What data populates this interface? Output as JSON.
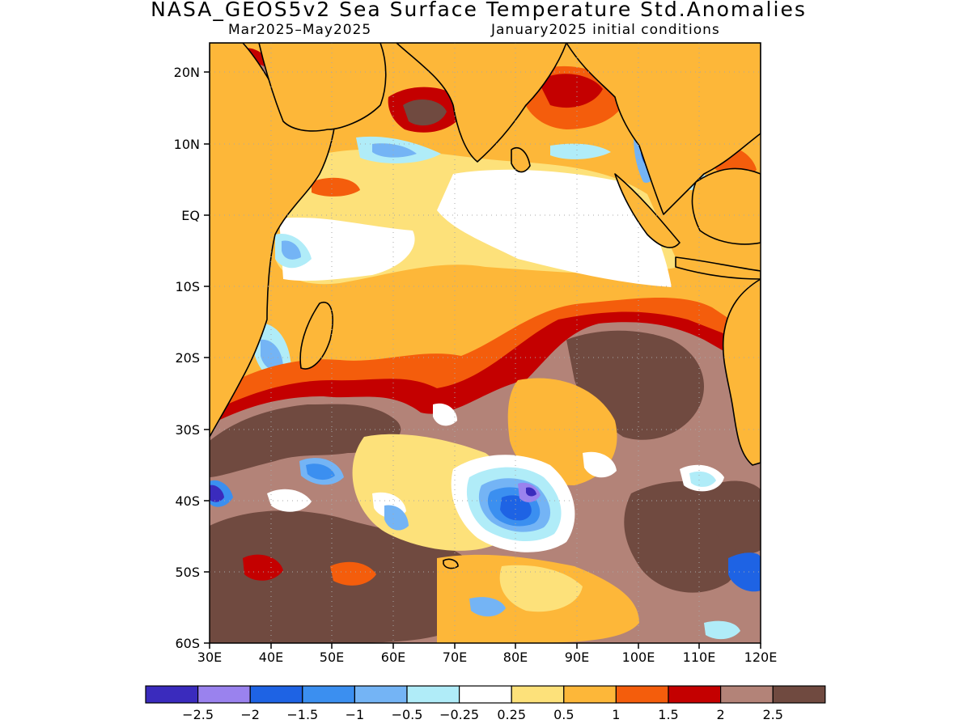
{
  "title": "NASA_GEOS5v2 Sea Surface Temperature Std.Anomalies",
  "subtitle_left": "Mar2025–May2025",
  "subtitle_right": "January2025 initial conditions",
  "lat_labels": [
    "20N",
    "10N",
    "EQ",
    "10S",
    "20S",
    "30S",
    "40S",
    "50S",
    "60S"
  ],
  "lon_labels": [
    "30E",
    "40E",
    "50E",
    "60E",
    "70E",
    "80E",
    "90E",
    "100E",
    "110E",
    "120E"
  ],
  "colorbar": {
    "colors": [
      "#3a2bbd",
      "#9a82ee",
      "#1e63e4",
      "#3b8ff0",
      "#74b4f5",
      "#b0ecf8",
      "#ffffff",
      "#fde17a",
      "#fdb739",
      "#f45d0c",
      "#c40000",
      "#b38378",
      "#704a40"
    ],
    "labels": [
      "−2.5",
      "−2",
      "−1.5",
      "−1",
      "−0.5",
      "−0.25",
      "0.25",
      "0.5",
      "1",
      "1.5",
      "2",
      "2.5"
    ]
  }
}
